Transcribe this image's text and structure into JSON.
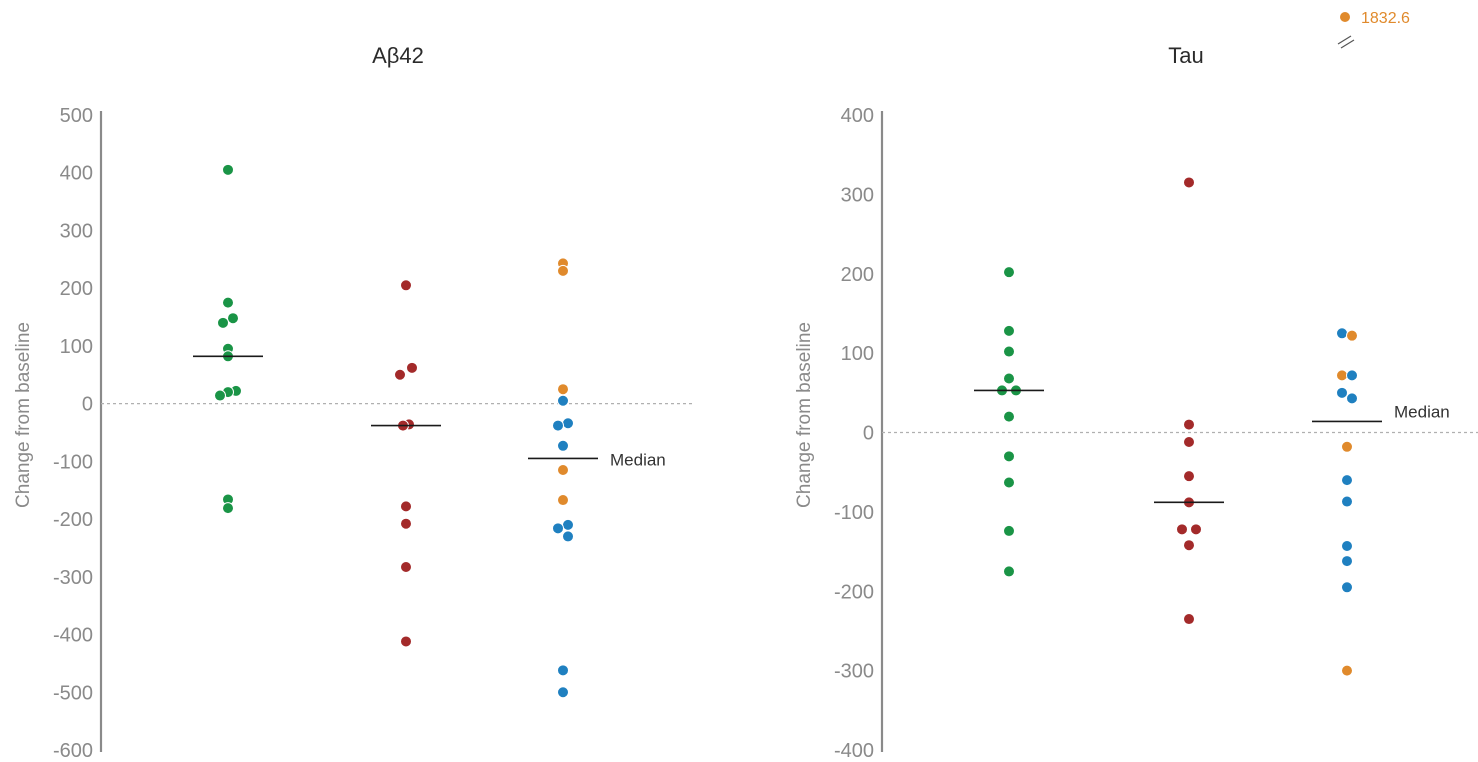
{
  "colors": {
    "green": "#1a9446",
    "red": "#a32a2a",
    "blue": "#1f80c0",
    "orange": "#e08a2c",
    "axis": "#8a8a8a",
    "median": "#1a1a1a",
    "zeroline": "#b0b0b0"
  },
  "chart_data": [
    {
      "type": "scatter",
      "title": "Aβ42",
      "ylabel": "Change from baseline",
      "ylim": [
        -600,
        500
      ],
      "yticks": [
        500,
        400,
        300,
        200,
        100,
        0,
        -100,
        -200,
        -300,
        -400,
        -500,
        -600
      ],
      "median_label": "Median",
      "groups": [
        {
          "color": "green",
          "median": 82,
          "points": [
            {
              "y": 405,
              "j": 0
            },
            {
              "y": 175,
              "j": 0
            },
            {
              "y": 148,
              "j": 5
            },
            {
              "y": 140,
              "j": -5
            },
            {
              "y": 95,
              "j": 0
            },
            {
              "y": 82,
              "j": 0
            },
            {
              "y": 22,
              "j": 8
            },
            {
              "y": 20,
              "j": 0
            },
            {
              "y": 14,
              "j": -8
            },
            {
              "y": -166,
              "j": 0
            },
            {
              "y": -181,
              "j": 0
            }
          ]
        },
        {
          "color": "red",
          "median": -38,
          "points": [
            {
              "y": 205,
              "j": 0
            },
            {
              "y": 62,
              "j": 6
            },
            {
              "y": 50,
              "j": -6
            },
            {
              "y": -36,
              "j": 3
            },
            {
              "y": -38,
              "j": -3
            },
            {
              "y": -178,
              "j": 0
            },
            {
              "y": -208,
              "j": 0
            },
            {
              "y": -283,
              "j": 0
            },
            {
              "y": -412,
              "j": 0
            }
          ]
        },
        {
          "color": "mixed",
          "median": -95,
          "points": [
            {
              "y": 243,
              "j": 0,
              "c": "orange"
            },
            {
              "y": 230,
              "j": 0,
              "c": "orange"
            },
            {
              "y": 25,
              "j": 0,
              "c": "orange"
            },
            {
              "y": 5,
              "j": 0,
              "c": "blue"
            },
            {
              "y": -34,
              "j": 5,
              "c": "blue"
            },
            {
              "y": -38,
              "j": -5,
              "c": "blue"
            },
            {
              "y": -73,
              "j": 0,
              "c": "blue"
            },
            {
              "y": -115,
              "j": 0,
              "c": "orange"
            },
            {
              "y": -167,
              "j": 0,
              "c": "orange"
            },
            {
              "y": -210,
              "j": 5,
              "c": "blue"
            },
            {
              "y": -216,
              "j": -5,
              "c": "blue"
            },
            {
              "y": -230,
              "j": 5,
              "c": "blue"
            },
            {
              "y": -462,
              "j": 0,
              "c": "blue"
            },
            {
              "y": -500,
              "j": 0,
              "c": "blue"
            }
          ]
        }
      ]
    },
    {
      "type": "scatter",
      "title": "Tau",
      "ylabel": "Change from baseline",
      "ylim": [
        -400,
        400
      ],
      "yticks": [
        400,
        300,
        200,
        100,
        0,
        -100,
        -200,
        -300,
        -400
      ],
      "median_label": "Median",
      "outlier": {
        "value": 1832.6,
        "label": "1832.6",
        "color": "orange"
      },
      "groups": [
        {
          "color": "green",
          "median": 53,
          "points": [
            {
              "y": 202,
              "j": 0
            },
            {
              "y": 128,
              "j": 0
            },
            {
              "y": 102,
              "j": 0
            },
            {
              "y": 68,
              "j": 0
            },
            {
              "y": 53,
              "j": -7
            },
            {
              "y": 53,
              "j": 7
            },
            {
              "y": 20,
              "j": 0
            },
            {
              "y": -30,
              "j": 0
            },
            {
              "y": -63,
              "j": 0
            },
            {
              "y": -124,
              "j": 0
            },
            {
              "y": -175,
              "j": 0
            }
          ]
        },
        {
          "color": "red",
          "median": -88,
          "points": [
            {
              "y": 315,
              "j": 0
            },
            {
              "y": 10,
              "j": 0
            },
            {
              "y": -12,
              "j": 0
            },
            {
              "y": -55,
              "j": 0
            },
            {
              "y": -88,
              "j": 0
            },
            {
              "y": -122,
              "j": -7
            },
            {
              "y": -122,
              "j": 7
            },
            {
              "y": -142,
              "j": 0
            },
            {
              "y": -235,
              "j": 0
            }
          ]
        },
        {
          "color": "mixed",
          "median": 14,
          "points": [
            {
              "y": 125,
              "j": -5,
              "c": "blue"
            },
            {
              "y": 122,
              "j": 5,
              "c": "orange"
            },
            {
              "y": 72,
              "j": -5,
              "c": "orange"
            },
            {
              "y": 72,
              "j": 5,
              "c": "blue"
            },
            {
              "y": 50,
              "j": -5,
              "c": "blue"
            },
            {
              "y": 43,
              "j": 5,
              "c": "blue"
            },
            {
              "y": -18,
              "j": 0,
              "c": "orange"
            },
            {
              "y": -60,
              "j": 0,
              "c": "blue"
            },
            {
              "y": -87,
              "j": 0,
              "c": "blue"
            },
            {
              "y": -143,
              "j": 0,
              "c": "blue"
            },
            {
              "y": -162,
              "j": 0,
              "c": "blue"
            },
            {
              "y": -195,
              "j": 0,
              "c": "blue"
            },
            {
              "y": -300,
              "j": 0,
              "c": "orange"
            }
          ]
        }
      ]
    }
  ]
}
